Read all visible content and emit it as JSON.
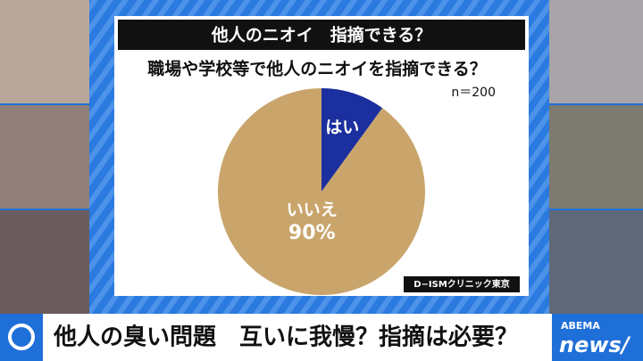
{
  "chart_data": {
    "type": "pie",
    "title": "他人のニオイ　指摘できる？",
    "subtitle": "職場や学校等で他人のニオイを指摘できる？",
    "annotation": "n＝200",
    "source": "D−ISMクリニック東京",
    "categories": [
      "はい",
      "いいえ"
    ],
    "values": [
      10,
      90
    ],
    "value_labels": [
      null,
      "90%"
    ],
    "colors": [
      "#1c2f9e",
      "#c9a56c"
    ]
  },
  "ticker": {
    "headline": "他人の臭い問題　互いに我慢？指摘は必要？",
    "logo_top": "ABEMA",
    "logo_bottom": "news/"
  }
}
